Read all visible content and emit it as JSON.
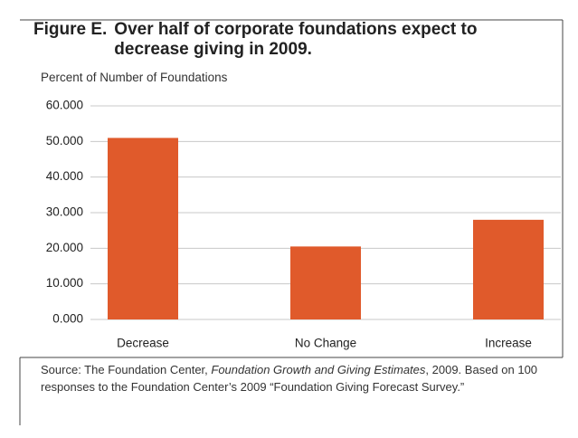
{
  "chart_data": {
    "type": "bar",
    "figure_label": "Figure E.",
    "title": "Over half of corporate foundations expect to decrease giving in 2009.",
    "y_axis_label": "Percent of Number of Foundations",
    "categories": [
      "Decrease",
      "No Change",
      "Increase"
    ],
    "values": [
      51,
      20.5,
      28
    ],
    "color": "#e05a2b",
    "ylim": [
      0,
      60
    ],
    "yticks": [
      {
        "value": 0,
        "label": "0.000"
      },
      {
        "value": 10,
        "label": "10.000"
      },
      {
        "value": 20,
        "label": "20.000"
      },
      {
        "value": 30,
        "label": "30.000"
      },
      {
        "value": 40,
        "label": "40.000"
      },
      {
        "value": 50,
        "label": "50.000"
      },
      {
        "value": 60,
        "label": "60.000"
      }
    ],
    "grid": true,
    "source": {
      "prefix": "Source: The Foundation Center, ",
      "publication": "Foundation Growth and Giving Estimates",
      "suffix": ", 2009.",
      "note": "Based on 100 responses to the Foundation Center’s 2009 “Foundation Giving Forecast Survey.”"
    }
  }
}
